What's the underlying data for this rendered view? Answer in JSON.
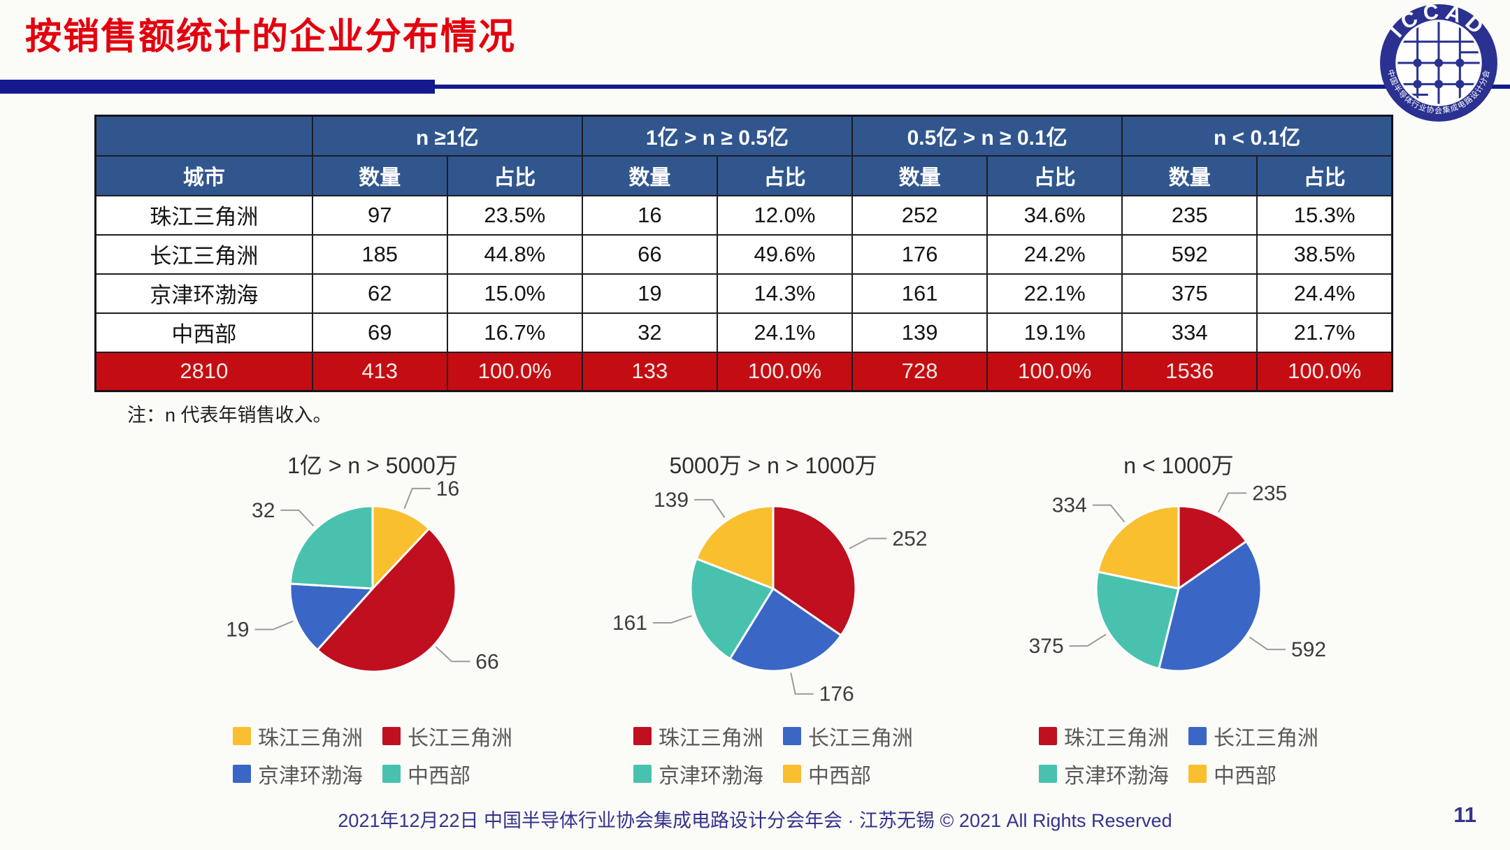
{
  "slide": {
    "title": "按销售额统计的企业分布情况",
    "note": "注：n 代表年销售收入。",
    "footer": "2021年12月22日 中国半导体行业协会集成电路设计分会年会 · 江苏无锡 © 2021 All Rights Reserved",
    "page_number": "11"
  },
  "logo": {
    "acronym": "ICCAD",
    "ring_text": "中国半导体行业协会集成电路设计分会"
  },
  "colors": {
    "title_red": "#e3000e",
    "rule_navy": "#141a8e",
    "header_blue": "#31568e",
    "total_row_red": "#c40d12",
    "footer_navy": "#33338c",
    "pie_yellow": "#f9bf2f",
    "pie_red": "#c00f1e",
    "pie_blue": "#3a67c5",
    "pie_teal": "#48c2ae"
  },
  "table": {
    "corner_label": "",
    "city_header": "城市",
    "group_headers": [
      "n ≥1亿",
      "1亿 > n ≥ 0.5亿",
      "0.5亿 > n ≥ 0.1亿",
      "n < 0.1亿"
    ],
    "sub_headers": [
      "数量",
      "占比"
    ],
    "rows": [
      {
        "city": "珠江三角洲",
        "cells": [
          "97",
          "23.5%",
          "16",
          "12.0%",
          "252",
          "34.6%",
          "235",
          "15.3%"
        ]
      },
      {
        "city": "长江三角洲",
        "cells": [
          "185",
          "44.8%",
          "66",
          "49.6%",
          "176",
          "24.2%",
          "592",
          "38.5%"
        ]
      },
      {
        "city": "京津环渤海",
        "cells": [
          "62",
          "15.0%",
          "19",
          "14.3%",
          "161",
          "22.1%",
          "375",
          "24.4%"
        ]
      },
      {
        "city": "中西部",
        "cells": [
          "69",
          "16.7%",
          "32",
          "24.1%",
          "139",
          "19.1%",
          "334",
          "21.7%"
        ]
      }
    ],
    "total_row": {
      "city": "2810",
      "cells": [
        "413",
        "100.0%",
        "133",
        "100.0%",
        "728",
        "100.0%",
        "1536",
        "100.0%"
      ]
    }
  },
  "chart_data": [
    {
      "type": "pie",
      "title": "1亿 > n > 5000万",
      "labels": [
        "珠江三角洲",
        "长江三角洲",
        "京津环渤海",
        "中西部"
      ],
      "values": [
        16,
        66,
        19,
        32
      ],
      "colors": [
        "#f9bf2f",
        "#c00f1e",
        "#3a67c5",
        "#48c2ae"
      ],
      "start_angle": "12 o'clock, clockwise",
      "legend_position": "bottom",
      "total": 133
    },
    {
      "type": "pie",
      "title": "5000万 > n > 1000万",
      "labels": [
        "珠江三角洲",
        "长江三角洲",
        "京津环渤海",
        "中西部"
      ],
      "values": [
        252,
        176,
        161,
        139
      ],
      "colors": [
        "#c00f1e",
        "#3a67c5",
        "#48c2ae",
        "#f9bf2f"
      ],
      "start_angle": "12 o'clock, clockwise",
      "legend_position": "bottom",
      "total": 728
    },
    {
      "type": "pie",
      "title": "n < 1000万",
      "labels": [
        "珠江三角洲",
        "长江三角洲",
        "京津环渤海",
        "中西部"
      ],
      "values": [
        235,
        592,
        375,
        334
      ],
      "colors": [
        "#c00f1e",
        "#3a67c5",
        "#48c2ae",
        "#f9bf2f"
      ],
      "start_angle": "12 o'clock, clockwise",
      "legend_position": "bottom",
      "total": 1536
    }
  ]
}
